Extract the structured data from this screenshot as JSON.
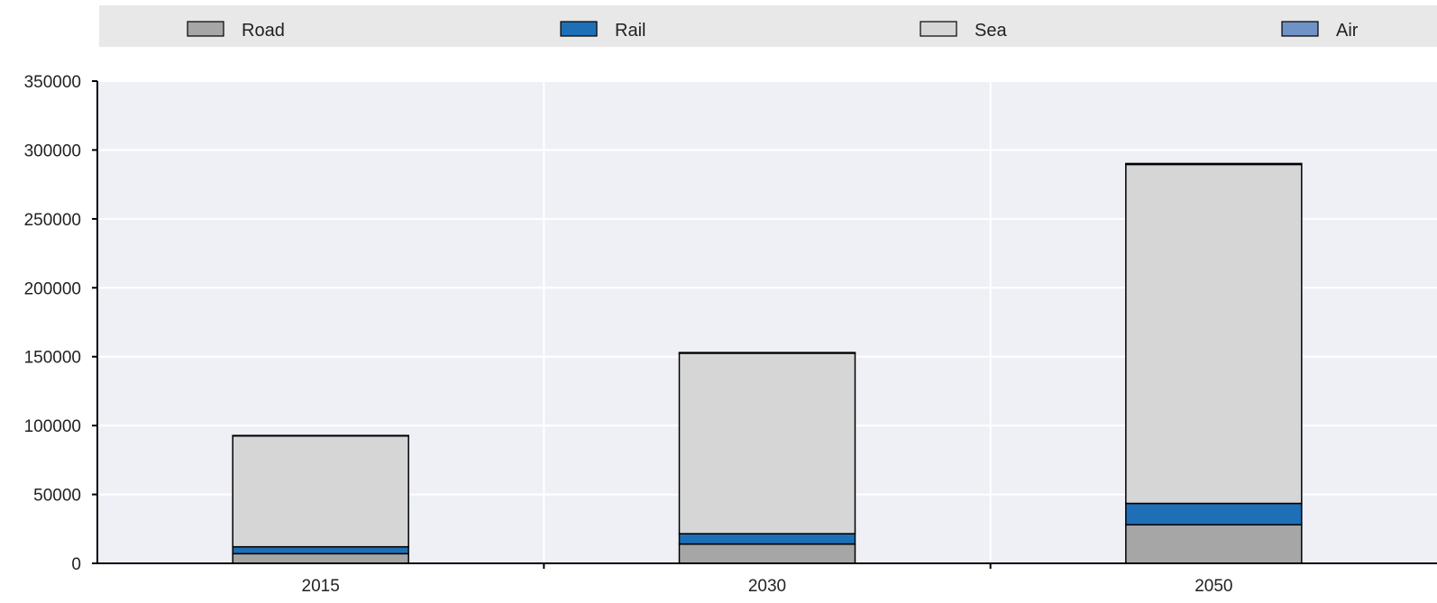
{
  "chart_data": {
    "type": "bar",
    "stacked": true,
    "title": "",
    "xlabel": "",
    "ylabel": "",
    "categories": [
      "2015",
      "2030",
      "2050"
    ],
    "series": [
      {
        "name": "Road",
        "values": [
          7000,
          14000,
          28000
        ],
        "color": "#a6a6a6"
      },
      {
        "name": "Rail",
        "values": [
          5000,
          7500,
          15500
        ],
        "color": "#1f6fb6"
      },
      {
        "name": "Sea",
        "values": [
          80500,
          131000,
          246000
        ],
        "color": "#d6d6d6"
      },
      {
        "name": "Air",
        "values": [
          300,
          500,
          700
        ],
        "color": "#6f93c7"
      }
    ],
    "ylim": [
      0,
      350000
    ],
    "yticks": [
      "0",
      "50000",
      "100000",
      "150000",
      "200000",
      "250000",
      "300000",
      "350000"
    ],
    "grid": true,
    "legend_position": "top",
    "colors": {
      "plot_background": "#eef0f6",
      "legend_background": "#e8e8e8",
      "gridline": "#ffffff",
      "axis": "#000000"
    }
  }
}
